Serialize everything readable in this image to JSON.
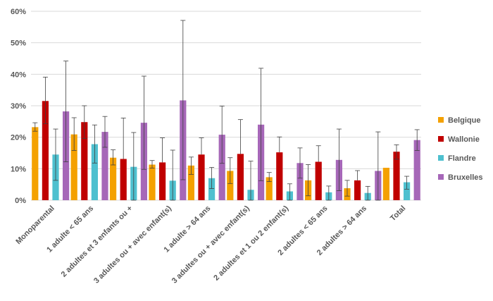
{
  "chart_data": {
    "type": "bar",
    "title": "",
    "xlabel": "",
    "ylabel": "",
    "ylim": [
      0,
      60
    ],
    "yticks": [
      0,
      10,
      20,
      30,
      40,
      50,
      60
    ],
    "ytick_labels": [
      "0%",
      "10%",
      "20%",
      "30%",
      "40%",
      "50%",
      "60%"
    ],
    "grid": true,
    "legend_position": "right",
    "categories": [
      "Monoparental",
      "1 adulte < 65 ans",
      "2 adultes et 3 enfants ou +",
      "3 adultes ou + avec enfant(s)",
      "1 adulte > 64 ans",
      "3 adultes ou + avec enfant(s)",
      "2 adultes et 1 ou 2 enfant(s)",
      "2 adultes < 65 ans",
      "2 adultes > 64 ans",
      "Total"
    ],
    "series": [
      {
        "name": "Belgique",
        "color": "#f4a100",
        "values": [
          23.2,
          20.9,
          13.5,
          11.3,
          11.0,
          9.3,
          7.3,
          6.3,
          3.8,
          10.3
        ],
        "err_low": [
          21.9,
          15.8,
          11.2,
          10.2,
          8.2,
          5.3,
          5.9,
          1.4,
          1.3,
          null
        ],
        "err_high": [
          24.6,
          26.2,
          16.0,
          12.6,
          13.7,
          13.5,
          8.8,
          11.3,
          6.3,
          null
        ]
      },
      {
        "name": "Wallonie",
        "color": "#c00000",
        "values": [
          31.5,
          24.8,
          13.1,
          12.0,
          14.5,
          14.7,
          15.2,
          12.2,
          6.3,
          15.4
        ],
        "err_low": [
          24.3,
          19.6,
          null,
          null,
          null,
          null,
          null,
          null,
          null,
          13.0
        ],
        "err_high": [
          39.1,
          30.0,
          26.1,
          19.8,
          19.8,
          25.6,
          20.1,
          17.3,
          9.4,
          17.6
        ]
      },
      {
        "name": "Flandre",
        "color": "#4ec0cf",
        "values": [
          14.5,
          17.8,
          10.6,
          6.2,
          7.0,
          3.3,
          2.8,
          2.5,
          2.3,
          5.7
        ],
        "err_low": [
          6.3,
          11.8,
          0.0,
          0.0,
          3.7,
          0.0,
          0.0,
          0.0,
          0.0,
          3.5
        ],
        "err_high": [
          22.6,
          23.9,
          21.5,
          15.9,
          10.4,
          12.4,
          5.2,
          4.5,
          4.4,
          7.6
        ]
      },
      {
        "name": "Bruxelles",
        "color": "#a667b8",
        "values": [
          28.2,
          21.7,
          24.6,
          31.7,
          20.8,
          24.0,
          11.8,
          12.8,
          9.3,
          19.1
        ],
        "err_low": [
          12.2,
          16.8,
          9.8,
          6.5,
          11.7,
          6.2,
          7.0,
          3.0,
          0.0,
          15.8
        ],
        "err_high": [
          44.2,
          26.6,
          39.4,
          57.1,
          29.9,
          41.9,
          16.6,
          22.6,
          21.7,
          22.4
        ]
      }
    ]
  }
}
